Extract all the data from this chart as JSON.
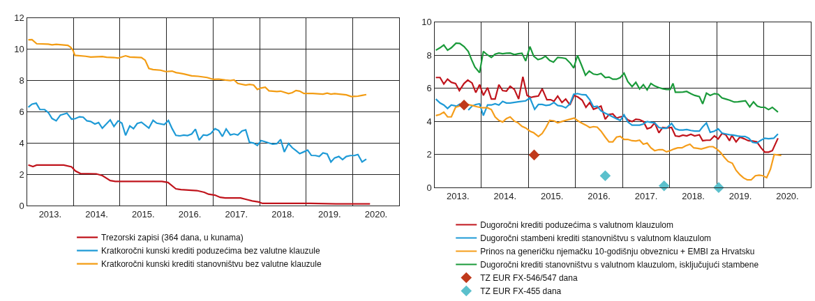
{
  "chart_data": [
    {
      "type": "line",
      "xlim": [
        2013,
        2021
      ],
      "ylim": [
        0,
        12
      ],
      "yticks": [
        0,
        2,
        4,
        6,
        8,
        10,
        12
      ],
      "xticks": [
        {
          "value": 2013.5,
          "label": "2013."
        },
        {
          "value": 2014.5,
          "label": "2014."
        },
        {
          "value": 2015.5,
          "label": "2015."
        },
        {
          "value": 2016.5,
          "label": "2016."
        },
        {
          "value": 2017.5,
          "label": "2017."
        },
        {
          "value": 2018.5,
          "label": "2018."
        },
        {
          "value": 2019.5,
          "label": "2019."
        },
        {
          "value": 2020.5,
          "label": "2020."
        },
        {
          "value": 2014,
          "label": null
        },
        {
          "value": 2015,
          "label": null
        },
        {
          "value": 2016,
          "label": null
        },
        {
          "value": 2017,
          "label": null
        },
        {
          "value": 2018,
          "label": null
        },
        {
          "value": 2019,
          "label": null
        },
        {
          "value": 2020,
          "label": null
        }
      ],
      "grid": true,
      "legend": "bottom",
      "marker": "none",
      "line_style": "solid",
      "series": [
        {
          "name": "Trezorski zapisi (364 dana, u kunama)",
          "color": "#c0141c",
          "x": [
            2013.03,
            2013.13,
            2013.21,
            2013.79,
            2013.96,
            2014.04,
            2014.15,
            2014.49,
            2014.62,
            2014.79,
            2014.9,
            2015.9,
            2016.03,
            2016.2,
            2016.31,
            2016.65,
            2016.81,
            2016.9,
            2017.04,
            2017.15,
            2017.26,
            2017.59,
            2017.73,
            2017.84,
            2017.98,
            2018.06,
            2019.09,
            2019.64,
            2020.37
          ],
          "values": [
            2.6,
            2.5,
            2.59,
            2.59,
            2.48,
            2.22,
            2.05,
            2.03,
            1.92,
            1.6,
            1.55,
            1.55,
            1.48,
            1.07,
            1.02,
            0.96,
            0.85,
            0.73,
            0.67,
            0.53,
            0.49,
            0.49,
            0.38,
            0.3,
            0.23,
            0.14,
            0.14,
            0.11,
            0.11
          ]
        },
        {
          "name": "Kratkoročni kunski krediti poduzećima bez valutne klauzule",
          "color": "#1e9ad6",
          "x": [
            2013.03,
            2013.11,
            2013.2,
            2013.28,
            2013.38,
            2013.46,
            2013.54,
            2013.63,
            2013.72,
            2013.86,
            2013.96,
            2014.04,
            2014.13,
            2014.21,
            2014.29,
            2014.37,
            2014.46,
            2014.54,
            2014.62,
            2014.79,
            2014.87,
            2014.96,
            2015.04,
            2015.12,
            2015.21,
            2015.29,
            2015.37,
            2015.46,
            2015.62,
            2015.71,
            2015.79,
            2015.95,
            2016.04,
            2016.12,
            2016.2,
            2016.29,
            2016.37,
            2016.45,
            2016.54,
            2016.62,
            2016.7,
            2016.79,
            2016.87,
            2016.95,
            2017.04,
            2017.12,
            2017.2,
            2017.28,
            2017.37,
            2017.45,
            2017.53,
            2017.62,
            2017.7,
            2017.78,
            2017.87,
            2017.95,
            2018.03,
            2018.12,
            2018.2,
            2018.28,
            2018.37,
            2018.45,
            2018.53,
            2018.62,
            2018.7,
            2018.78,
            2018.86,
            2018.95,
            2019.03,
            2019.11,
            2019.2,
            2019.28,
            2019.36,
            2019.45,
            2019.53,
            2019.61,
            2019.7,
            2019.78,
            2019.86,
            2019.95,
            2020.03,
            2020.11,
            2020.2,
            2020.29
          ],
          "values": [
            6.29,
            6.49,
            6.55,
            6.14,
            6.14,
            5.95,
            5.57,
            5.42,
            5.79,
            5.91,
            5.53,
            5.56,
            5.68,
            5.65,
            5.42,
            5.38,
            5.22,
            5.31,
            4.95,
            5.48,
            5.06,
            5.42,
            5.27,
            4.49,
            5.1,
            4.92,
            5.25,
            5.33,
            4.96,
            5.45,
            5.27,
            5.18,
            5.44,
            4.92,
            4.49,
            4.46,
            4.51,
            4.48,
            4.58,
            4.89,
            4.19,
            4.52,
            4.49,
            4.61,
            4.92,
            4.8,
            4.42,
            4.9,
            4.52,
            4.58,
            4.51,
            4.77,
            4.84,
            4.05,
            4.0,
            3.85,
            4.16,
            4.08,
            4.0,
            3.93,
            3.96,
            4.23,
            3.43,
            3.97,
            3.7,
            3.52,
            3.32,
            3.44,
            3.55,
            3.21,
            3.2,
            3.14,
            3.37,
            3.3,
            2.79,
            3.05,
            3.14,
            2.94,
            3.14,
            3.2,
            3.2,
            3.27,
            2.79,
            2.97
          ]
        },
        {
          "name": "Kratkoročni kunski krediti stanovništvu bez valutne klauzule",
          "color": "#f39c12",
          "x": [
            2013.03,
            2013.11,
            2013.21,
            2013.46,
            2013.54,
            2013.63,
            2013.88,
            2013.94,
            2013.99,
            2014.03,
            2014.26,
            2014.37,
            2014.54,
            2014.62,
            2014.71,
            2014.87,
            2014.96,
            2015.12,
            2015.21,
            2015.46,
            2015.54,
            2015.62,
            2015.71,
            2015.87,
            2015.98,
            2016.12,
            2016.2,
            2016.37,
            2016.54,
            2016.68,
            2016.87,
            2017.01,
            2017.12,
            2017.26,
            2017.37,
            2017.45,
            2017.53,
            2017.7,
            2017.78,
            2017.87,
            2017.95,
            2018.03,
            2018.12,
            2018.2,
            2018.37,
            2018.45,
            2018.62,
            2018.7,
            2018.78,
            2018.86,
            2018.95,
            2019.14,
            2019.36,
            2019.45,
            2019.53,
            2019.61,
            2019.86,
            2019.97,
            2020.11,
            2020.2,
            2020.29
          ],
          "values": [
            10.6,
            10.61,
            10.35,
            10.32,
            10.28,
            10.31,
            10.25,
            10.13,
            9.94,
            9.61,
            9.55,
            9.5,
            9.52,
            9.53,
            9.49,
            9.47,
            9.43,
            9.58,
            9.5,
            9.47,
            9.3,
            8.77,
            8.7,
            8.66,
            8.57,
            8.6,
            8.51,
            8.42,
            8.3,
            8.27,
            8.19,
            8.07,
            8.09,
            8.03,
            8.0,
            8.04,
            7.81,
            7.71,
            7.75,
            7.71,
            7.43,
            7.52,
            7.57,
            7.34,
            7.29,
            7.32,
            7.16,
            7.22,
            7.36,
            7.32,
            7.17,
            7.17,
            7.13,
            7.19,
            7.13,
            7.16,
            7.08,
            6.97,
            7.0,
            7.05,
            7.1
          ]
        }
      ]
    },
    {
      "type": "line",
      "xlim": [
        2013,
        2021
      ],
      "ylim": [
        0,
        10
      ],
      "yticks": [
        0,
        2,
        4,
        6,
        8,
        10
      ],
      "xticks": [
        {
          "value": 2013.5,
          "label": "2013."
        },
        {
          "value": 2014.5,
          "label": "2014."
        },
        {
          "value": 2015.5,
          "label": "2015."
        },
        {
          "value": 2016.5,
          "label": "2016."
        },
        {
          "value": 2017.5,
          "label": "2017."
        },
        {
          "value": 2018.5,
          "label": "2018."
        },
        {
          "value": 2019.5,
          "label": "2019."
        },
        {
          "value": 2020.5,
          "label": "2020."
        },
        {
          "value": 2014,
          "label": null
        },
        {
          "value": 2015,
          "label": null
        },
        {
          "value": 2016,
          "label": null
        },
        {
          "value": 2017,
          "label": null
        },
        {
          "value": 2018,
          "label": null
        },
        {
          "value": 2019,
          "label": null
        },
        {
          "value": 2020,
          "label": null
        }
      ],
      "grid": true,
      "legend": "bottom",
      "marker": "none",
      "line_style": "solid",
      "series": [
        {
          "name": "Dugoročni krediti poduzećima s valutnom klauzulom",
          "color": "#c0141c",
          "x": [
            2013.03,
            2013.12,
            2013.2,
            2013.28,
            2013.36,
            2013.45,
            2013.53,
            2013.63,
            2013.71,
            2013.8,
            2013.88,
            2013.96,
            2014.04,
            2014.13,
            2014.21,
            2014.29,
            2014.37,
            2014.45,
            2014.53,
            2014.61,
            2014.7,
            2014.79,
            2014.88,
            2014.97,
            2015.05,
            2015.13,
            2015.21,
            2015.29,
            2015.39,
            2015.47,
            2015.54,
            2015.62,
            2015.71,
            2015.79,
            2015.88,
            2015.97,
            2016.05,
            2016.14,
            2016.22,
            2016.3,
            2016.38,
            2016.46,
            2016.54,
            2016.63,
            2016.71,
            2016.79,
            2016.87,
            2016.95,
            2017.03,
            2017.11,
            2017.2,
            2017.28,
            2017.36,
            2017.44,
            2017.52,
            2017.6,
            2017.68,
            2017.77,
            2017.85,
            2017.93,
            2018.04,
            2018.12,
            2018.2,
            2018.28,
            2018.36,
            2018.45,
            2018.53,
            2018.63,
            2018.7,
            2018.78,
            2018.86,
            2018.95,
            2019.03,
            2019.11,
            2019.19,
            2019.27,
            2019.32,
            2019.41,
            2019.49,
            2019.58,
            2019.67,
            2019.76,
            2019.85,
            2019.94,
            2020.02,
            2020.1,
            2020.18,
            2020.3
          ],
          "values": [
            6.65,
            6.65,
            6.26,
            6.55,
            6.36,
            6.29,
            5.86,
            6.29,
            6.5,
            6.32,
            5.74,
            6.22,
            5.57,
            6.04,
            5.35,
            5.35,
            6.22,
            5.86,
            5.83,
            6.12,
            5.93,
            5.35,
            6.69,
            5.57,
            5.45,
            5.5,
            5.53,
            5.97,
            5.31,
            5.31,
            5.21,
            5.53,
            5.14,
            5.35,
            4.99,
            5.57,
            5.47,
            5.28,
            4.85,
            5.14,
            4.73,
            4.82,
            4.92,
            4.13,
            4.42,
            4.45,
            4.2,
            4.27,
            4.32,
            4.09,
            3.99,
            4.13,
            4.1,
            3.99,
            3.55,
            3.63,
            3.91,
            3.31,
            3.63,
            3.6,
            3.63,
            3.12,
            3.09,
            3.17,
            3.12,
            3.22,
            3.12,
            3.19,
            2.83,
            2.86,
            2.86,
            3.12,
            2.94,
            3.27,
            3.19,
            2.83,
            3.15,
            2.76,
            3.05,
            2.95,
            2.83,
            2.81,
            2.76,
            2.4,
            2.14,
            2.14,
            2.23,
            2.98
          ]
        },
        {
          "name": "Dugoročni stambeni krediti stanovništvu s valutnom klauzulom",
          "color": "#1e9ad6",
          "x": [
            2013.03,
            2013.12,
            2013.2,
            2013.28,
            2013.36,
            2013.47,
            2013.55,
            2013.64,
            2013.72,
            2013.8,
            2013.88,
            2013.96,
            2014.04,
            2014.13,
            2014.21,
            2014.29,
            2014.37,
            2014.45,
            2014.53,
            2014.61,
            2014.78,
            2014.94,
            2015.03,
            2015.13,
            2015.21,
            2015.29,
            2015.37,
            2015.45,
            2015.54,
            2015.62,
            2015.71,
            2015.79,
            2015.88,
            2015.96,
            2016.04,
            2016.14,
            2016.22,
            2016.3,
            2016.38,
            2016.46,
            2016.54,
            2016.63,
            2016.71,
            2016.79,
            2016.87,
            2016.95,
            2017.03,
            2017.11,
            2017.2,
            2017.28,
            2017.36,
            2017.44,
            2017.52,
            2017.6,
            2017.68,
            2017.77,
            2017.85,
            2017.93,
            2018.04,
            2018.12,
            2018.2,
            2018.28,
            2018.36,
            2018.45,
            2018.53,
            2018.63,
            2018.7,
            2018.78,
            2018.86,
            2018.95,
            2019.03,
            2019.11,
            2019.19,
            2019.27,
            2019.35,
            2019.44,
            2019.52,
            2019.6,
            2019.68,
            2019.76,
            2019.85,
            2019.92,
            2020.02,
            2020.1,
            2020.21,
            2020.3
          ],
          "values": [
            5.35,
            5.11,
            4.99,
            4.78,
            4.99,
            4.92,
            5.06,
            null,
            4.68,
            4.92,
            5.02,
            5.06,
            4.35,
            4.99,
            4.99,
            5.06,
            4.99,
            5.21,
            5.11,
            5.11,
            5.18,
            5.24,
            5.42,
            4.73,
            5.02,
            5.02,
            4.96,
            4.99,
            5.14,
            4.96,
            4.92,
            4.82,
            5.06,
            5.64,
            5.68,
            5.61,
            5.6,
            5.31,
            4.88,
            4.92,
            4.63,
            4.49,
            4.39,
            4.27,
            4.16,
            4.06,
            4.39,
            3.96,
            3.77,
            3.77,
            3.77,
            3.84,
            3.99,
            3.94,
            3.91,
            3.63,
            3.58,
            3.58,
            3.87,
            3.55,
            3.48,
            3.48,
            3.51,
            3.45,
            3.41,
            3.41,
            3.67,
            3.9,
            3.34,
            3.41,
            3.55,
            3.29,
            3.24,
            3.19,
            3.17,
            3.12,
            3.09,
            3.09,
            2.98,
            2.73,
            2.69,
            2.83,
            2.98,
            2.95,
            2.98,
            3.24
          ]
        },
        {
          "name": "Prinos na generičku njemačku 10-godišnju obveznicu + EMBI za Hrvatsku",
          "color": "#f59d1a",
          "x": [
            2013.03,
            2013.12,
            2013.2,
            2013.28,
            2013.36,
            2013.45,
            2013.53,
            2013.64,
            2013.72,
            2013.8,
            2013.91,
            2014.02,
            2014.13,
            2014.21,
            2014.29,
            2014.37,
            2014.45,
            2014.53,
            2014.61,
            2014.7,
            2014.78,
            2014.86,
            2014.94,
            2015.03,
            2015.11,
            2015.21,
            2015.29,
            2015.37,
            2015.45,
            2015.54,
            2015.62,
            2015.71,
            2015.79,
            2015.88,
            2015.97,
            2016.05,
            2016.14,
            2016.22,
            2016.3,
            2016.38,
            2016.46,
            2016.54,
            2016.63,
            2016.71,
            2016.79,
            2016.87,
            2016.95,
            2017.03,
            2017.11,
            2017.2,
            2017.28,
            2017.36,
            2017.44,
            2017.52,
            2017.6,
            2017.68,
            2017.77,
            2017.85,
            2017.93,
            2018.01,
            2018.09,
            2018.17,
            2018.26,
            2018.34,
            2018.43,
            2018.51,
            2018.59,
            2018.67,
            2018.76,
            2018.84,
            2018.92,
            2019.0,
            2019.08,
            2019.16,
            2019.24,
            2019.33,
            2019.41,
            2019.49,
            2019.57,
            2019.65,
            2019.73,
            2019.82,
            2019.9,
            2019.98,
            2020.06,
            2020.14,
            2020.22,
            2020.3,
            2020.37
          ],
          "values": [
            4.35,
            4.42,
            4.56,
            4.27,
            4.27,
            4.85,
            4.92,
            5.06,
            5.02,
            4.96,
            4.88,
            4.82,
            4.82,
            4.71,
            4.27,
            4.06,
            3.96,
            4.17,
            4.27,
            4.01,
            3.91,
            3.7,
            3.6,
            3.41,
            3.31,
            3.09,
            3.27,
            3.63,
            4.06,
            4.03,
            3.91,
            3.99,
            4.06,
            4.13,
            4.2,
            4.03,
            3.88,
            3.77,
            3.63,
            3.68,
            3.65,
            3.41,
            3.05,
            2.76,
            2.76,
            3.05,
            3.09,
            2.91,
            2.91,
            2.83,
            2.81,
            2.86,
            2.62,
            2.69,
            2.4,
            2.23,
            2.29,
            2.29,
            2.16,
            2.23,
            2.33,
            2.4,
            2.4,
            2.52,
            2.62,
            2.4,
            2.37,
            2.33,
            2.4,
            2.47,
            2.47,
            2.33,
            2.12,
            1.83,
            1.58,
            1.47,
            1.04,
            0.78,
            0.58,
            0.46,
            0.46,
            0.71,
            0.75,
            0.71,
            0.6,
            1.11,
            2.0,
            1.97,
            1.94
          ]
        },
        {
          "name": "Dugoročni krediti stanovništvu s valutnom klauzulom, isključujući stambene",
          "color": "#1a9a3a",
          "x": [
            2013.03,
            2013.12,
            2013.2,
            2013.28,
            2013.36,
            2013.46,
            2013.54,
            2013.63,
            2013.72,
            2013.79,
            2013.86,
            2013.96,
            2014.04,
            2014.13,
            2014.21,
            2014.29,
            2014.37,
            2014.45,
            2014.53,
            2014.61,
            2014.7,
            2014.78,
            2014.86,
            2014.94,
            2015.03,
            2015.11,
            2015.2,
            2015.28,
            2015.36,
            2015.45,
            2015.53,
            2015.62,
            2015.71,
            2015.79,
            2015.89,
            2015.96,
            2016.04,
            2016.12,
            2016.21,
            2016.29,
            2016.38,
            2016.46,
            2016.54,
            2016.63,
            2016.71,
            2016.79,
            2016.87,
            2016.95,
            2017.03,
            2017.11,
            2017.2,
            2017.28,
            2017.36,
            2017.44,
            2017.52,
            2017.6,
            2017.68,
            2017.77,
            2017.85,
            2017.93,
            2018.01,
            2018.07,
            2018.12,
            2018.2,
            2018.28,
            2018.36,
            2018.45,
            2018.53,
            2018.63,
            2018.7,
            2018.78,
            2018.86,
            2018.95,
            2019.03,
            2019.11,
            2019.19,
            2019.27,
            2019.37,
            2019.45,
            2019.53,
            2019.61,
            2019.7,
            2019.78,
            2019.86,
            2019.94,
            2020.02,
            2020.1,
            2020.18,
            2020.3
          ],
          "values": [
            8.3,
            8.45,
            8.62,
            8.3,
            8.45,
            8.73,
            8.71,
            8.52,
            8.23,
            7.73,
            7.29,
            6.94,
            8.23,
            8.01,
            7.87,
            8.06,
            8.13,
            8.09,
            8.12,
            8.13,
            8.04,
            8.09,
            8.12,
            7.65,
            8.52,
            7.94,
            7.73,
            7.8,
            7.94,
            7.68,
            7.58,
            7.87,
            7.84,
            7.8,
            7.51,
            7.22,
            7.99,
            7.44,
            6.79,
            7.04,
            6.86,
            6.82,
            6.89,
            6.65,
            6.68,
            6.55,
            6.55,
            6.65,
            6.91,
            6.4,
            6.1,
            6.36,
            5.96,
            6.22,
            5.9,
            6.29,
            6.14,
            6.04,
            5.97,
            5.93,
            5.93,
            6.29,
            5.76,
            5.76,
            5.77,
            5.81,
            5.67,
            5.57,
            5.5,
            5.06,
            5.71,
            5.57,
            5.68,
            5.64,
            5.42,
            5.35,
            5.28,
            5.17,
            5.18,
            5.21,
            5.24,
            4.88,
            5.18,
            4.92,
            4.85,
            4.85,
            4.71,
            4.85,
            4.56
          ]
        },
        {
          "name": "TZ EUR FX-546/547 dana",
          "type": "scatter",
          "marker": "diamond",
          "color": "#c0391b",
          "x": [
            2013.63,
            2015.12
          ],
          "values": [
            4.99,
            1.97
          ]
        },
        {
          "name": "TZ EUR FX-455 dana",
          "type": "scatter",
          "marker": "diamond",
          "color": "#5bc0cc",
          "x": [
            2016.63,
            2017.88,
            2019.04
          ],
          "values": [
            0.71,
            0.1,
            0.0
          ]
        }
      ]
    }
  ]
}
